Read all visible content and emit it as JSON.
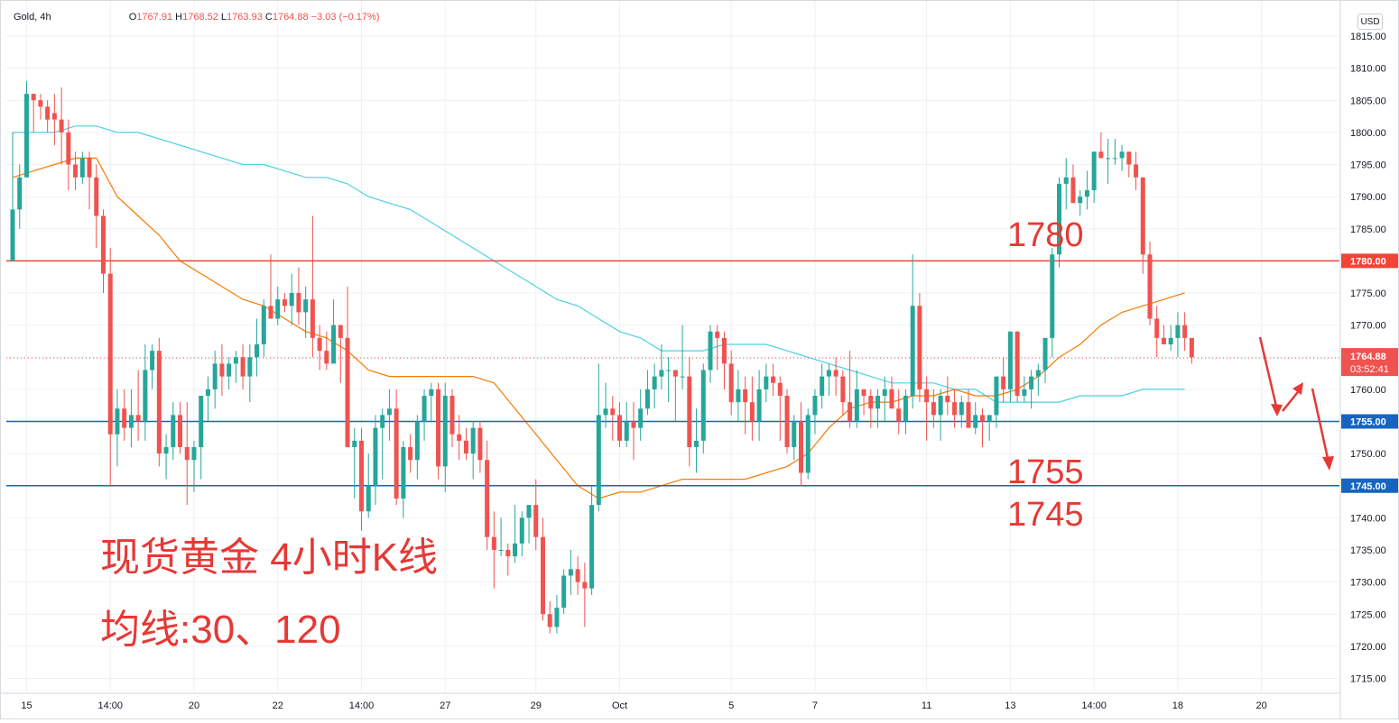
{
  "header": {
    "symbol": "Gold",
    "separator": ",",
    "interval": "4h",
    "open_label": "O",
    "open": "1767.91",
    "high_label": "H",
    "high": "1768.52",
    "low_label": "L",
    "low": "1763.93",
    "close_label": "C",
    "close": "1764.88",
    "change": "−3.03 (−0.17%)"
  },
  "currency_button": "USD",
  "colors": {
    "up": "#26a69a",
    "down": "#ef5350",
    "ma30": "#f57c00",
    "ma120": "#4dd0e1",
    "resistance": "#f44336",
    "support": "#1565c0",
    "annotation": "#e53935",
    "grid": "#eef0f3"
  },
  "annotations": {
    "level_1780": "1780",
    "level_1755": "1755",
    "level_1745": "1745",
    "title": "现货黄金 4小时K线",
    "ma_note": "均线:30、120"
  },
  "chart_data": {
    "type": "candlestick",
    "symbol": "Gold",
    "interval": "4h",
    "currency": "USD",
    "ylim": [
      1711,
      1818
    ],
    "y_ticks": [
      "1815.00",
      "1810.00",
      "1805.00",
      "1800.00",
      "1795.00",
      "1790.00",
      "1785.00",
      "1780.00",
      "1775.00",
      "1770.00",
      "1765.00",
      "1760.00",
      "1755.00",
      "1750.00",
      "1745.00",
      "1740.00",
      "1735.00",
      "1730.00",
      "1725.00",
      "1720.00",
      "1715.00"
    ],
    "x_ticks": [
      {
        "label": "15",
        "bar": 2
      },
      {
        "label": "14:00",
        "bar": 14
      },
      {
        "label": "20",
        "bar": 26
      },
      {
        "label": "22",
        "bar": 38
      },
      {
        "label": "14:00",
        "bar": 50
      },
      {
        "label": "27",
        "bar": 62
      },
      {
        "label": "29",
        "bar": 75
      },
      {
        "label": "Oct",
        "bar": 87
      },
      {
        "label": "5",
        "bar": 103
      },
      {
        "label": "7",
        "bar": 115
      },
      {
        "label": "11",
        "bar": 131
      },
      {
        "label": "13",
        "bar": 143
      },
      {
        "label": "14:00",
        "bar": 155
      },
      {
        "label": "18",
        "bar": 167
      },
      {
        "label": "20",
        "bar": 179
      }
    ],
    "horizontal_levels": [
      {
        "price": 1780.0,
        "label": "1780.00",
        "kind": "resistance"
      },
      {
        "price": 1755.0,
        "label": "1755.00",
        "kind": "support"
      },
      {
        "price": 1745.0,
        "label": "1745.00",
        "kind": "support"
      }
    ],
    "last_price": {
      "value": 1764.88,
      "label": "1764.88",
      "countdown": "03:52:41"
    },
    "candles": [
      [
        1780,
        1800,
        1780,
        1788
      ],
      [
        1788,
        1795,
        1785,
        1793
      ],
      [
        1793,
        1808,
        1793,
        1806
      ],
      [
        1806,
        1806,
        1800,
        1805
      ],
      [
        1805,
        1806,
        1802,
        1804
      ],
      [
        1804,
        1805,
        1800,
        1802
      ],
      [
        1803,
        1806,
        1798,
        1802
      ],
      [
        1802,
        1807,
        1795,
        1800
      ],
      [
        1800,
        1802,
        1791,
        1795
      ],
      [
        1795,
        1797,
        1791,
        1793
      ],
      [
        1793,
        1797,
        1792,
        1796
      ],
      [
        1796,
        1797,
        1788,
        1793
      ],
      [
        1793,
        1795,
        1782,
        1787
      ],
      [
        1787,
        1788,
        1775,
        1778
      ],
      [
        1778,
        1782,
        1745,
        1753
      ],
      [
        1753,
        1760,
        1748,
        1757
      ],
      [
        1757,
        1760,
        1752,
        1754
      ],
      [
        1754,
        1760,
        1751,
        1756
      ],
      [
        1756,
        1763,
        1752,
        1755
      ],
      [
        1755,
        1767,
        1752,
        1763
      ],
      [
        1763,
        1767,
        1760,
        1766
      ],
      [
        1766,
        1768,
        1748,
        1750
      ],
      [
        1750,
        1753,
        1746,
        1751
      ],
      [
        1751,
        1758,
        1749,
        1756
      ],
      [
        1756,
        1758,
        1750,
        1751
      ],
      [
        1751,
        1758,
        1742,
        1749
      ],
      [
        1749,
        1752,
        1744,
        1751
      ],
      [
        1751,
        1759,
        1746,
        1759
      ],
      [
        1759,
        1762,
        1755,
        1760
      ],
      [
        1760,
        1766,
        1757,
        1764
      ],
      [
        1764,
        1767,
        1759,
        1762
      ],
      [
        1762,
        1765,
        1760,
        1764
      ],
      [
        1764,
        1766,
        1761,
        1765
      ],
      [
        1765,
        1767,
        1760,
        1762
      ],
      [
        1762,
        1767,
        1758,
        1765
      ],
      [
        1765,
        1771,
        1762,
        1767
      ],
      [
        1767,
        1774,
        1765,
        1773
      ],
      [
        1773,
        1781,
        1771,
        1771
      ],
      [
        1771,
        1776,
        1770,
        1774
      ],
      [
        1774,
        1775,
        1772,
        1773
      ],
      [
        1773,
        1778,
        1770,
        1775
      ],
      [
        1775,
        1779,
        1770,
        1772
      ],
      [
        1772,
        1776,
        1768,
        1774
      ],
      [
        1774,
        1787,
        1765,
        1768
      ],
      [
        1768,
        1770,
        1763,
        1766
      ],
      [
        1766,
        1769,
        1763,
        1764
      ],
      [
        1764,
        1774,
        1764,
        1770
      ],
      [
        1770,
        1770,
        1761,
        1768
      ],
      [
        1768,
        1776,
        1752,
        1751
      ],
      [
        1751,
        1754,
        1743,
        1752
      ],
      [
        1752,
        1754,
        1738,
        1741
      ],
      [
        1741,
        1750,
        1740,
        1745
      ],
      [
        1745,
        1756,
        1742,
        1754
      ],
      [
        1754,
        1757,
        1746,
        1756
      ],
      [
        1756,
        1760,
        1752,
        1757
      ],
      [
        1757,
        1760,
        1742,
        1743
      ],
      [
        1743,
        1752,
        1740,
        1751
      ],
      [
        1751,
        1753,
        1747,
        1749
      ],
      [
        1749,
        1756,
        1746,
        1755
      ],
      [
        1755,
        1760,
        1752,
        1759
      ],
      [
        1759,
        1761,
        1755,
        1760
      ],
      [
        1760,
        1761,
        1746,
        1748
      ],
      [
        1748,
        1761,
        1744,
        1759
      ],
      [
        1759,
        1760,
        1751,
        1753
      ],
      [
        1753,
        1756,
        1749,
        1752
      ],
      [
        1752,
        1754,
        1749,
        1750
      ],
      [
        1750,
        1755,
        1746,
        1754
      ],
      [
        1754,
        1755,
        1747,
        1749
      ],
      [
        1749,
        1752,
        1735,
        1737
      ],
      [
        1737,
        1741,
        1729,
        1735
      ],
      [
        1735,
        1740,
        1734,
        1735
      ],
      [
        1735,
        1736,
        1731,
        1734
      ],
      [
        1734,
        1742,
        1733,
        1736
      ],
      [
        1736,
        1741,
        1734,
        1740
      ],
      [
        1740,
        1742,
        1736,
        1742
      ],
      [
        1742,
        1746,
        1735,
        1737
      ],
      [
        1737,
        1740,
        1724,
        1725
      ],
      [
        1725,
        1727,
        1722,
        1723
      ],
      [
        1723,
        1728,
        1722,
        1726
      ],
      [
        1726,
        1732,
        1725,
        1731
      ],
      [
        1731,
        1735,
        1728,
        1732
      ],
      [
        1732,
        1734,
        1728,
        1730
      ],
      [
        1730,
        1733,
        1723,
        1729
      ],
      [
        1729,
        1745,
        1728,
        1742
      ],
      [
        1742,
        1764,
        1741,
        1756
      ],
      [
        1756,
        1761,
        1754,
        1757
      ],
      [
        1757,
        1759,
        1752,
        1756
      ],
      [
        1756,
        1758,
        1751,
        1752
      ],
      [
        1752,
        1758,
        1751,
        1755
      ],
      [
        1755,
        1758,
        1749,
        1754
      ],
      [
        1754,
        1760,
        1752,
        1757
      ],
      [
        1757,
        1763,
        1756,
        1760
      ],
      [
        1760,
        1764,
        1757,
        1762
      ],
      [
        1762,
        1767,
        1760,
        1763
      ],
      [
        1763,
        1765,
        1758,
        1763
      ],
      [
        1763,
        1762,
        1755,
        1762
      ],
      [
        1762,
        1770,
        1760,
        1762
      ],
      [
        1762,
        1765,
        1748,
        1751
      ],
      [
        1751,
        1757,
        1747,
        1752
      ],
      [
        1752,
        1764,
        1750,
        1763
      ],
      [
        1763,
        1770,
        1761,
        1769
      ],
      [
        1769,
        1770,
        1763,
        1768
      ],
      [
        1768,
        1769,
        1760,
        1764
      ],
      [
        1764,
        1766,
        1756,
        1758
      ],
      [
        1758,
        1763,
        1755,
        1760
      ],
      [
        1760,
        1762,
        1753,
        1758
      ],
      [
        1758,
        1762,
        1752,
        1755
      ],
      [
        1755,
        1763,
        1752,
        1760
      ],
      [
        1760,
        1764,
        1758,
        1762
      ],
      [
        1762,
        1764,
        1759,
        1761
      ],
      [
        1761,
        1762,
        1752,
        1759
      ],
      [
        1759,
        1760,
        1750,
        1751
      ],
      [
        1751,
        1756,
        1749,
        1755
      ],
      [
        1755,
        1758,
        1745,
        1747
      ],
      [
        1747,
        1757,
        1746,
        1756
      ],
      [
        1756,
        1760,
        1753,
        1759
      ],
      [
        1759,
        1764,
        1757,
        1762
      ],
      [
        1762,
        1764,
        1759,
        1763
      ],
      [
        1763,
        1765,
        1759,
        1762
      ],
      [
        1762,
        1763,
        1756,
        1758
      ],
      [
        1758,
        1766,
        1754,
        1755
      ],
      [
        1755,
        1763,
        1754,
        1760
      ],
      [
        1760,
        1760,
        1756,
        1759
      ],
      [
        1759,
        1760,
        1754,
        1757
      ],
      [
        1757,
        1760,
        1754,
        1759
      ],
      [
        1759,
        1762,
        1755,
        1760
      ],
      [
        1760,
        1762,
        1757,
        1757
      ],
      [
        1757,
        1760,
        1753,
        1755
      ],
      [
        1755,
        1760,
        1753,
        1759
      ],
      [
        1759,
        1781,
        1757,
        1773
      ],
      [
        1773,
        1775,
        1758,
        1760
      ],
      [
        1760,
        1762,
        1752,
        1758
      ],
      [
        1758,
        1760,
        1754,
        1756
      ],
      [
        1756,
        1760,
        1752,
        1759
      ],
      [
        1759,
        1762,
        1756,
        1758
      ],
      [
        1758,
        1760,
        1754,
        1756
      ],
      [
        1756,
        1759,
        1754,
        1758
      ],
      [
        1758,
        1760,
        1754,
        1754
      ],
      [
        1754,
        1758,
        1753,
        1756
      ],
      [
        1756,
        1757,
        1751,
        1755
      ],
      [
        1755,
        1756,
        1752,
        1756
      ],
      [
        1756,
        1762,
        1754,
        1762
      ],
      [
        1762,
        1765,
        1758,
        1760
      ],
      [
        1760,
        1769,
        1758,
        1769
      ],
      [
        1769,
        1769,
        1758,
        1759
      ],
      [
        1759,
        1762,
        1758,
        1760
      ],
      [
        1760,
        1763,
        1757,
        1762
      ],
      [
        1762,
        1764,
        1759,
        1763
      ],
      [
        1763,
        1768,
        1761,
        1768
      ],
      [
        1768,
        1782,
        1765,
        1781
      ],
      [
        1781,
        1793,
        1779,
        1792
      ],
      [
        1792,
        1796,
        1788,
        1793
      ],
      [
        1793,
        1795,
        1790,
        1789
      ],
      [
        1789,
        1791,
        1787,
        1790
      ],
      [
        1790,
        1794,
        1788,
        1791
      ],
      [
        1791,
        1797,
        1789,
        1797
      ],
      [
        1797,
        1800,
        1796,
        1796
      ],
      [
        1796,
        1799,
        1792,
        1796
      ],
      [
        1796,
        1799,
        1795,
        1796
      ],
      [
        1796,
        1798,
        1794,
        1797
      ],
      [
        1797,
        1797,
        1793,
        1795
      ],
      [
        1795,
        1797,
        1791,
        1793
      ],
      [
        1793,
        1793,
        1778,
        1781
      ],
      [
        1781,
        1783,
        1770,
        1771
      ],
      [
        1771,
        1773,
        1765,
        1768
      ],
      [
        1768,
        1770,
        1767,
        1767
      ],
      [
        1767,
        1770,
        1766,
        1768
      ],
      [
        1768,
        1772,
        1765,
        1770
      ],
      [
        1770,
        1772,
        1766,
        1768
      ],
      [
        1768,
        1768,
        1764,
        1765
      ]
    ],
    "moving_averages": [
      {
        "name": "MA30",
        "period": 30,
        "color": "#f57c00"
      },
      {
        "name": "MA120",
        "period": 120,
        "color": "#4dd0e1"
      }
    ],
    "ma30_values": [
      [
        0,
        1793
      ],
      [
        3,
        1794
      ],
      [
        6,
        1795
      ],
      [
        9,
        1796
      ],
      [
        12,
        1796
      ],
      [
        15,
        1790
      ],
      [
        18,
        1787
      ],
      [
        21,
        1784
      ],
      [
        24,
        1780
      ],
      [
        27,
        1778
      ],
      [
        30,
        1776
      ],
      [
        33,
        1774
      ],
      [
        36,
        1773
      ],
      [
        39,
        1771
      ],
      [
        42,
        1769
      ],
      [
        45,
        1768
      ],
      [
        48,
        1766
      ],
      [
        51,
        1763
      ],
      [
        54,
        1762
      ],
      [
        57,
        1762
      ],
      [
        60,
        1762
      ],
      [
        63,
        1762
      ],
      [
        66,
        1762
      ],
      [
        69,
        1761
      ],
      [
        72,
        1757
      ],
      [
        75,
        1753
      ],
      [
        78,
        1749
      ],
      [
        81,
        1745
      ],
      [
        84,
        1743
      ],
      [
        87,
        1744
      ],
      [
        90,
        1744
      ],
      [
        93,
        1745
      ],
      [
        96,
        1746
      ],
      [
        99,
        1746
      ],
      [
        102,
        1746
      ],
      [
        105,
        1746
      ],
      [
        108,
        1747
      ],
      [
        111,
        1748
      ],
      [
        114,
        1750
      ],
      [
        117,
        1754
      ],
      [
        120,
        1757
      ],
      [
        123,
        1758
      ],
      [
        126,
        1758
      ],
      [
        129,
        1759
      ],
      [
        132,
        1759
      ],
      [
        135,
        1760
      ],
      [
        138,
        1759
      ],
      [
        141,
        1759
      ],
      [
        144,
        1760
      ],
      [
        147,
        1762
      ],
      [
        150,
        1765
      ],
      [
        153,
        1767
      ],
      [
        156,
        1770
      ],
      [
        159,
        1772
      ],
      [
        162,
        1773
      ],
      [
        165,
        1774
      ],
      [
        168,
        1775
      ]
    ],
    "ma120_values": [
      [
        0,
        1800
      ],
      [
        3,
        1800
      ],
      [
        6,
        1800
      ],
      [
        9,
        1801
      ],
      [
        12,
        1801
      ],
      [
        15,
        1800
      ],
      [
        18,
        1800
      ],
      [
        21,
        1799
      ],
      [
        24,
        1798
      ],
      [
        27,
        1797
      ],
      [
        30,
        1796
      ],
      [
        33,
        1795
      ],
      [
        36,
        1795
      ],
      [
        39,
        1794
      ],
      [
        42,
        1793
      ],
      [
        45,
        1793
      ],
      [
        48,
        1792
      ],
      [
        51,
        1790
      ],
      [
        54,
        1789
      ],
      [
        57,
        1788
      ],
      [
        60,
        1786
      ],
      [
        63,
        1784
      ],
      [
        66,
        1782
      ],
      [
        69,
        1780
      ],
      [
        72,
        1778
      ],
      [
        75,
        1776
      ],
      [
        78,
        1774
      ],
      [
        81,
        1773
      ],
      [
        84,
        1771
      ],
      [
        87,
        1769
      ],
      [
        90,
        1768
      ],
      [
        93,
        1766
      ],
      [
        96,
        1766
      ],
      [
        99,
        1766
      ],
      [
        102,
        1767
      ],
      [
        105,
        1767
      ],
      [
        108,
        1767
      ],
      [
        111,
        1766
      ],
      [
        114,
        1765
      ],
      [
        117,
        1764
      ],
      [
        120,
        1763
      ],
      [
        123,
        1762
      ],
      [
        126,
        1761
      ],
      [
        129,
        1761
      ],
      [
        132,
        1761
      ],
      [
        135,
        1760
      ],
      [
        138,
        1760
      ],
      [
        141,
        1758
      ],
      [
        144,
        1758
      ],
      [
        147,
        1758
      ],
      [
        150,
        1758
      ],
      [
        153,
        1759
      ],
      [
        156,
        1759
      ],
      [
        159,
        1759
      ],
      [
        162,
        1760
      ],
      [
        165,
        1760
      ],
      [
        168,
        1760
      ]
    ]
  }
}
